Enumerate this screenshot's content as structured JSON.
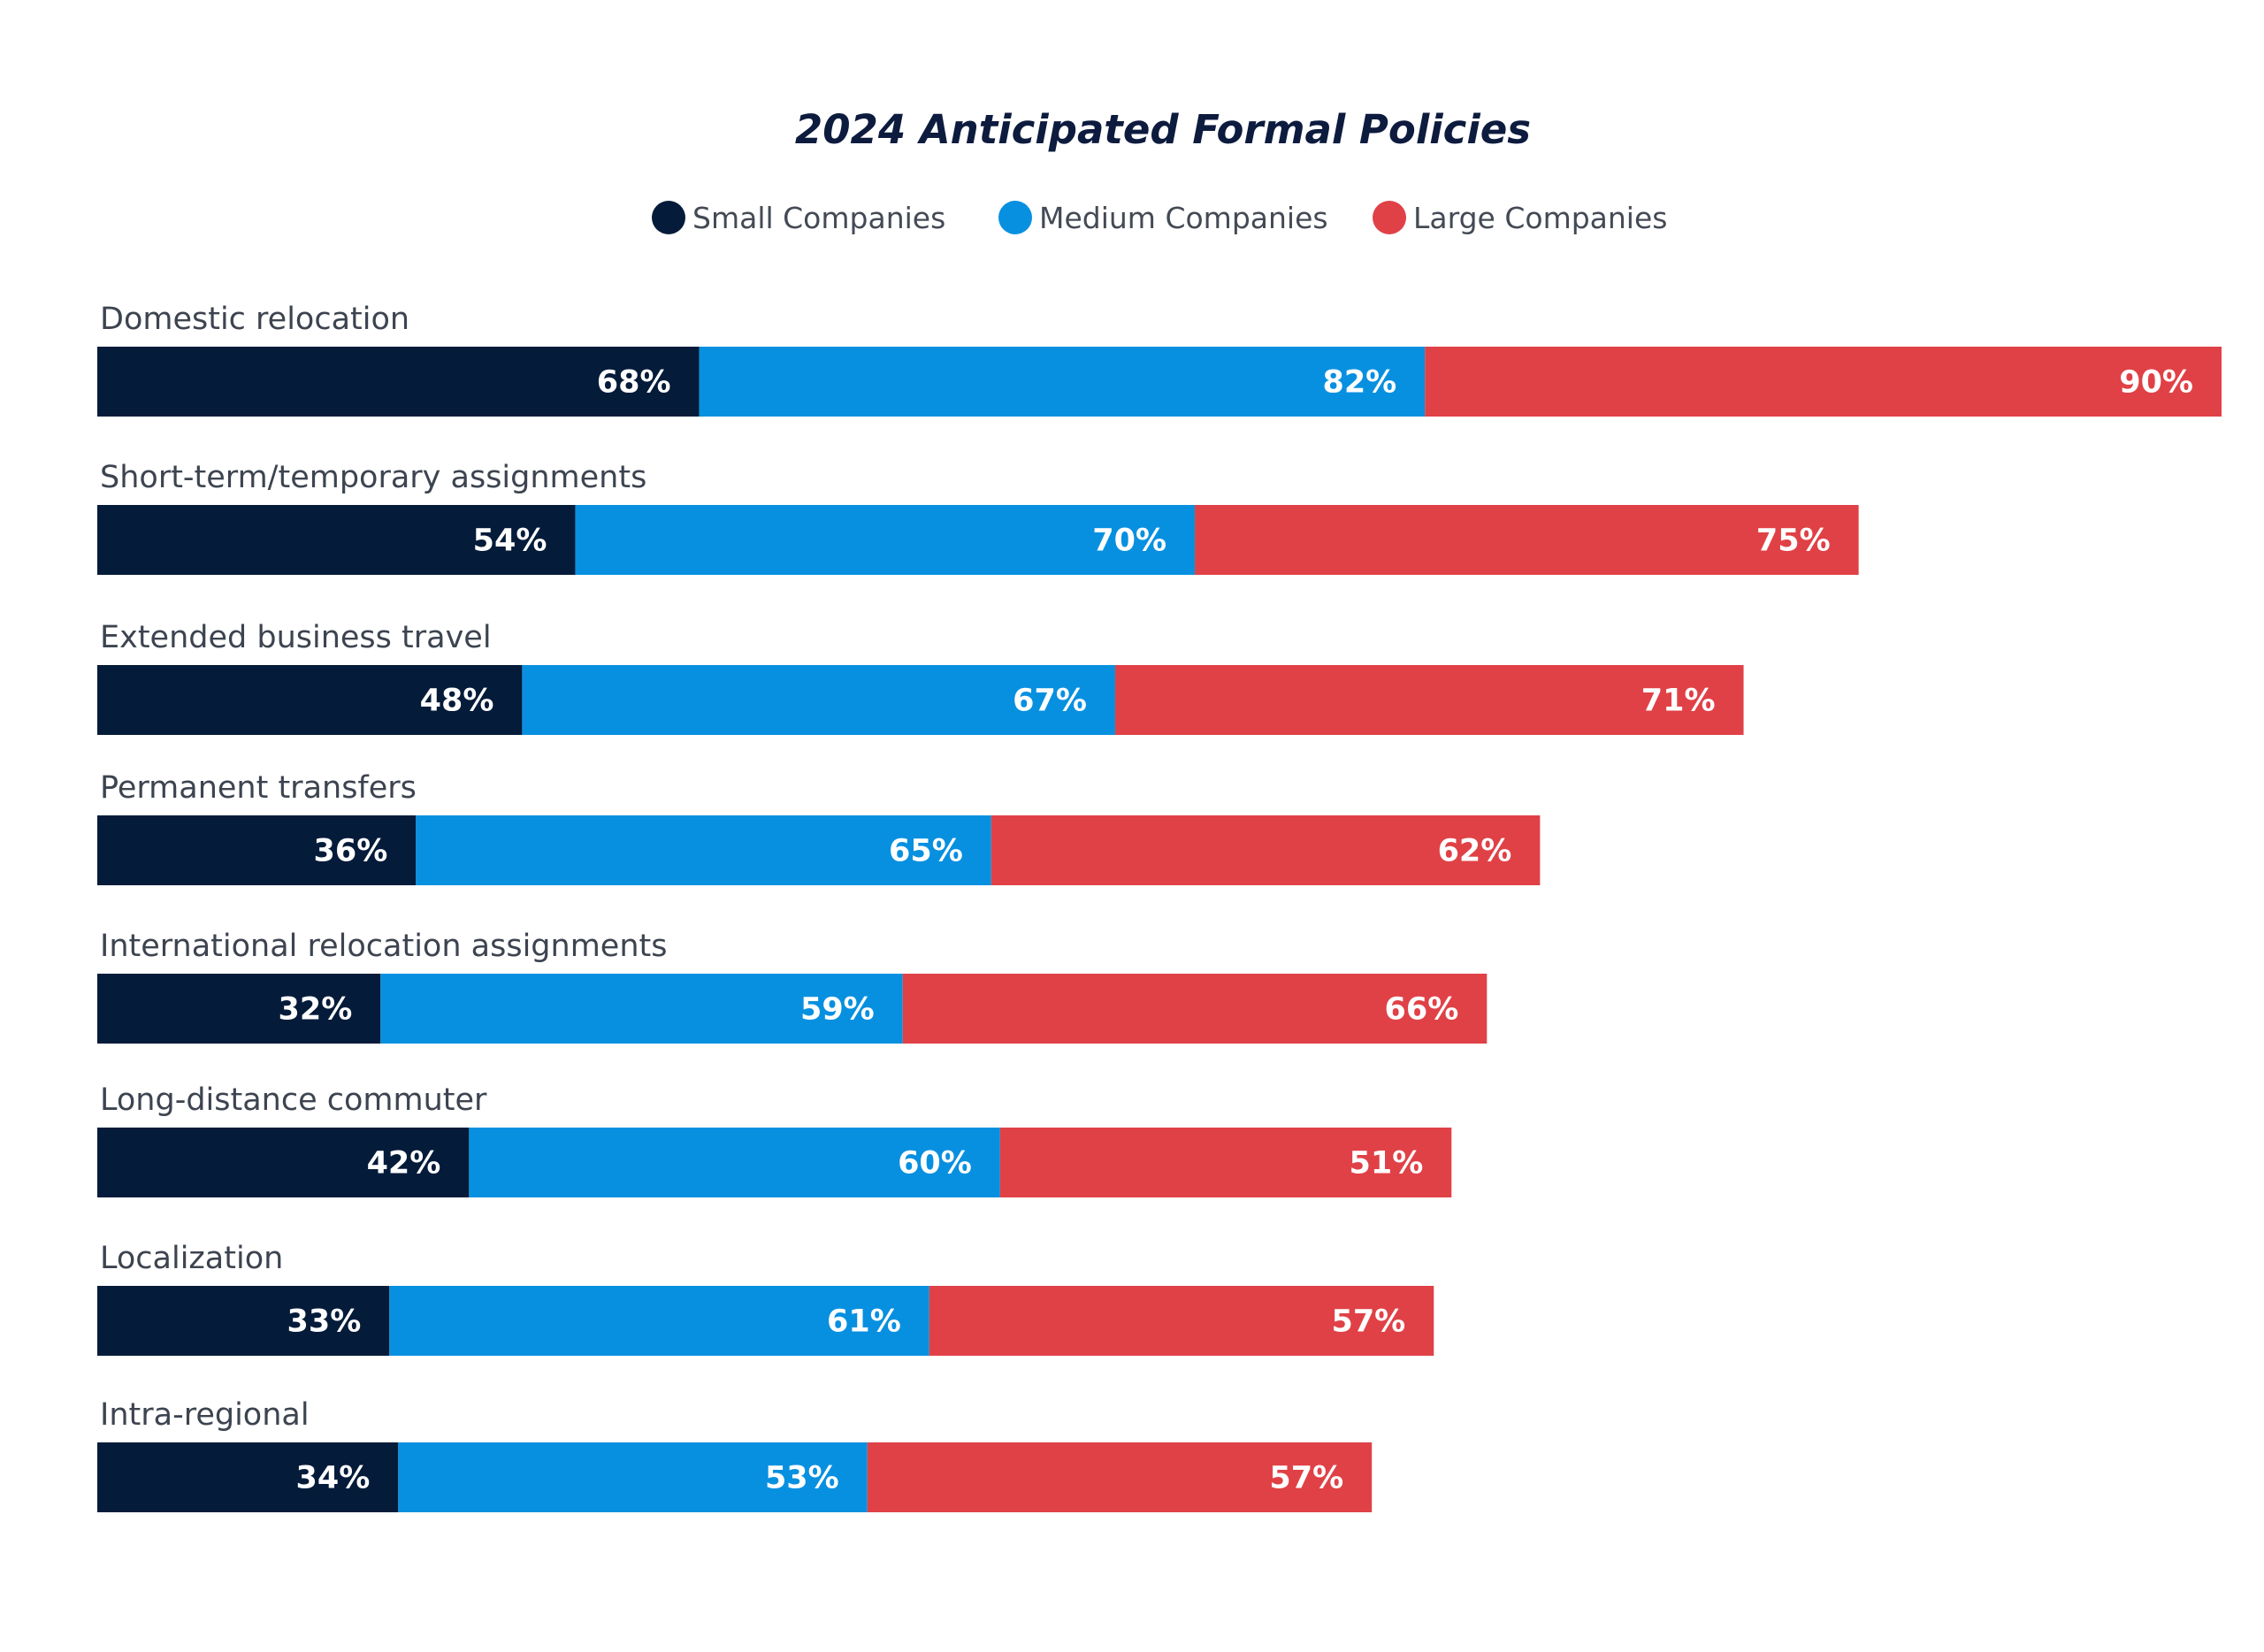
{
  "chart_data": {
    "type": "bar",
    "orientation": "horizontal",
    "stacking": "stacked",
    "title": "2024 Anticipated Formal Policies",
    "value_suffix": "%",
    "legend_position": "top-center",
    "grid": false,
    "categories": [
      "Domestic relocation",
      "Short-term/temporary assignments",
      "Extended business travel",
      "Permanent transfers",
      "International relocation assignments",
      "Long-distance commuter",
      "Localization",
      "Intra-regional"
    ],
    "series": [
      {
        "name": "Small Companies",
        "color": "#041b3a",
        "values": [
          68,
          54,
          48,
          36,
          32,
          42,
          33,
          34
        ]
      },
      {
        "name": "Medium Companies",
        "color": "#0890e0",
        "values": [
          82,
          70,
          67,
          65,
          59,
          60,
          61,
          53
        ]
      },
      {
        "name": "Large Companies",
        "color": "#e04146",
        "values": [
          90,
          75,
          71,
          62,
          66,
          51,
          57,
          57
        ]
      }
    ]
  }
}
